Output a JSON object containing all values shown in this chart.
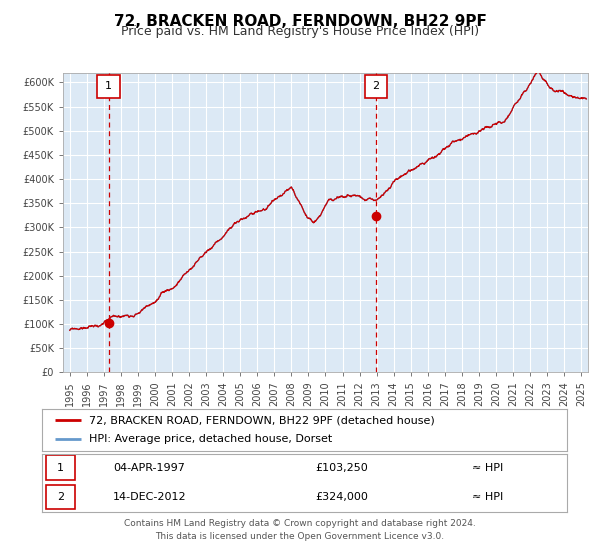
{
  "title": "72, BRACKEN ROAD, FERNDOWN, BH22 9PF",
  "subtitle": "Price paid vs. HM Land Registry's House Price Index (HPI)",
  "line1_label": "72, BRACKEN ROAD, FERNDOWN, BH22 9PF (detached house)",
  "line2_label": "HPI: Average price, detached house, Dorset",
  "point1_date": 1997.27,
  "point1_value": 103250,
  "point2_date": 2012.96,
  "point2_value": 324000,
  "point1_label": "1",
  "point2_label": "2",
  "table_row1": [
    "1",
    "04-APR-1997",
    "£103,250",
    "≈ HPI"
  ],
  "table_row2": [
    "2",
    "14-DEC-2012",
    "£324,000",
    "≈ HPI"
  ],
  "footer": "Contains HM Land Registry data © Crown copyright and database right 2024.\nThis data is licensed under the Open Government Licence v3.0.",
  "xlim": [
    1994.6,
    2025.4
  ],
  "ylim": [
    0,
    620000
  ],
  "yticks": [
    0,
    50000,
    100000,
    150000,
    200000,
    250000,
    300000,
    350000,
    400000,
    450000,
    500000,
    550000,
    600000
  ],
  "xticks": [
    1995,
    1996,
    1997,
    1998,
    1999,
    2000,
    2001,
    2002,
    2003,
    2004,
    2005,
    2006,
    2007,
    2008,
    2009,
    2010,
    2011,
    2012,
    2013,
    2014,
    2015,
    2016,
    2017,
    2018,
    2019,
    2020,
    2021,
    2022,
    2023,
    2024,
    2025
  ],
  "hpi_color": "#6699cc",
  "price_color": "#cc0000",
  "bg_color": "#dce9f5",
  "grid_color": "#ffffff",
  "vline_color": "#cc0000",
  "point_color": "#cc0000",
  "title_fontsize": 11,
  "subtitle_fontsize": 9,
  "axis_fontsize": 7,
  "legend_fontsize": 8,
  "table_fontsize": 8,
  "footer_fontsize": 6.5
}
